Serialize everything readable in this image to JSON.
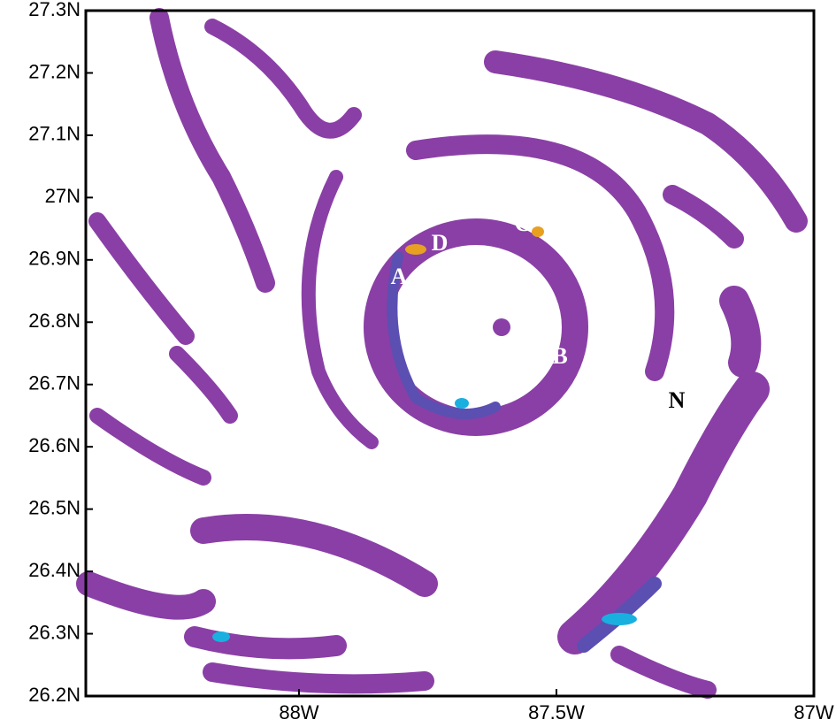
{
  "chart_data": {
    "type": "contour",
    "xlim": [
      -88.414,
      -87
    ],
    "ylim": [
      26.2,
      27.3
    ],
    "xticks": [
      {
        "value": -88,
        "label": "88W"
      },
      {
        "value": -87.5,
        "label": "87.5W"
      },
      {
        "value": -87,
        "label": "87W"
      }
    ],
    "yticks": [
      {
        "value": 26.2,
        "label": "26.2N"
      },
      {
        "value": 26.3,
        "label": "26.3N"
      },
      {
        "value": 26.4,
        "label": "26.4N"
      },
      {
        "value": 26.5,
        "label": "26.5N"
      },
      {
        "value": 26.6,
        "label": "26.6N"
      },
      {
        "value": 26.7,
        "label": "26.7N"
      },
      {
        "value": 26.8,
        "label": "26.8N"
      },
      {
        "value": 26.9,
        "label": "26.9N"
      },
      {
        "value": 27,
        "label": "27N"
      },
      {
        "value": 27.1,
        "label": "27.1N"
      },
      {
        "value": 27.2,
        "label": "27.2N"
      },
      {
        "value": 27.3,
        "label": "27.3N"
      }
    ],
    "annotations": [
      {
        "text": "A",
        "color": "#ffffff"
      },
      {
        "text": "B",
        "color": "#ffffff"
      },
      {
        "text": "C",
        "color": "#ffffff"
      },
      {
        "text": "D",
        "color": "#ffffff"
      },
      {
        "text": "N",
        "color": "#000000"
      }
    ]
  }
}
